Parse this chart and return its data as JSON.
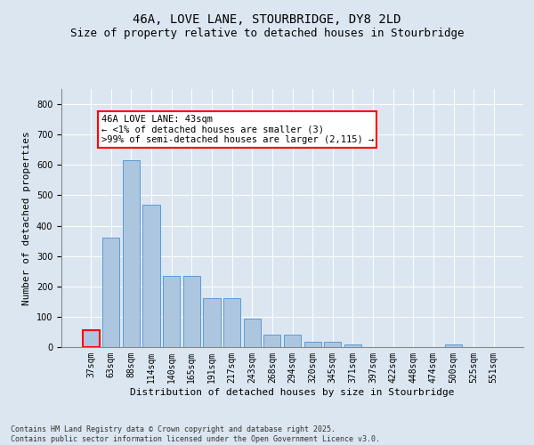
{
  "title1": "46A, LOVE LANE, STOURBRIDGE, DY8 2LD",
  "title2": "Size of property relative to detached houses in Stourbridge",
  "xlabel": "Distribution of detached houses by size in Stourbridge",
  "ylabel": "Number of detached properties",
  "categories": [
    "37sqm",
    "63sqm",
    "88sqm",
    "114sqm",
    "140sqm",
    "165sqm",
    "191sqm",
    "217sqm",
    "243sqm",
    "268sqm",
    "294sqm",
    "320sqm",
    "345sqm",
    "371sqm",
    "397sqm",
    "422sqm",
    "448sqm",
    "474sqm",
    "500sqm",
    "525sqm",
    "551sqm"
  ],
  "values": [
    55,
    360,
    615,
    470,
    235,
    235,
    160,
    160,
    95,
    40,
    40,
    18,
    18,
    10,
    0,
    0,
    0,
    0,
    8,
    0,
    0
  ],
  "bar_color": "#adc6e0",
  "bar_edge_color": "#5b9bd5",
  "bg_color": "#dce6f1",
  "fig_bg_color": "#dce6f1",
  "annotation_line1": "46A LOVE LANE: 43sqm",
  "annotation_line2": "← <1% of detached houses are smaller (3)",
  "annotation_line3": ">99% of semi-detached houses are larger (2,115) →",
  "footer": "Contains HM Land Registry data © Crown copyright and database right 2025.\nContains public sector information licensed under the Open Government Licence v3.0.",
  "ylim": [
    0,
    850
  ],
  "yticks": [
    0,
    100,
    200,
    300,
    400,
    500,
    600,
    700,
    800
  ],
  "grid_color": "white",
  "title_fontsize": 10,
  "subtitle_fontsize": 9,
  "tick_fontsize": 7,
  "label_fontsize": 8,
  "footer_fontsize": 6,
  "annot_fontsize": 7.5
}
